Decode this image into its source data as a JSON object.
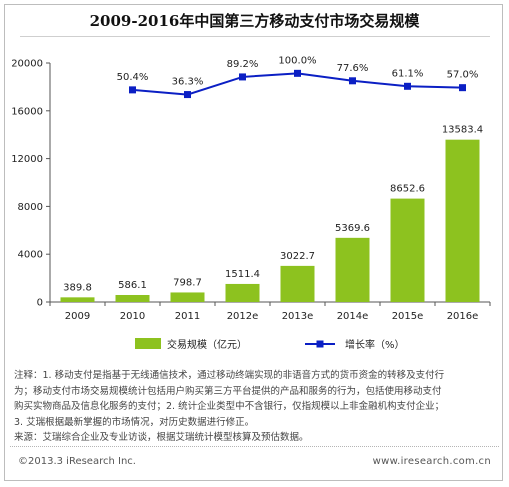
{
  "title": "2009-2016年中国第三方移动支付市场交易规模",
  "chart_data": {
    "type": "bar+line",
    "categories": [
      "2009",
      "2010",
      "2011",
      "2012e",
      "2013e",
      "2014e",
      "2015e",
      "2016e"
    ],
    "series": [
      {
        "name": "交易规模（亿元）",
        "type": "bar",
        "color": "#8dc21f",
        "values": [
          389.8,
          586.1,
          798.7,
          1511.4,
          3022.7,
          5369.6,
          8652.6,
          13583.4
        ],
        "labels": [
          "389.8",
          "586.1",
          "798.7",
          "1511.4",
          "3022.7",
          "5369.6",
          "8652.6",
          "13583.4"
        ]
      },
      {
        "name": "增长率（%）",
        "type": "line",
        "color": "#0b1fc4",
        "values": [
          null,
          50.4,
          36.3,
          89.2,
          100.0,
          77.6,
          61.1,
          57.0
        ],
        "labels": [
          "",
          "50.4%",
          "36.3%",
          "89.2%",
          "100.0%",
          "77.6%",
          "61.1%",
          "57.0%"
        ]
      }
    ],
    "y_axis": {
      "ylim": [
        0,
        20000
      ],
      "ticks": [
        "0",
        "4000",
        "8000",
        "12000",
        "16000",
        "20000"
      ]
    },
    "grid": false,
    "legend_position": "bottom"
  },
  "notes": [
    "注释：1. 移动支付是指基于无线通信技术，通过移动终端实现的非语音方式的货币资金的转移及支付行",
    "为；移动支付市场交易规模统计包括用户购买第三方平台提供的产品和服务的行为，包括使用移动支付",
    "购买实物商品及信息化服务的支付；2. 统计企业类型中不含银行，仅指规模以上非金融机构支付企业；",
    "3. 艾瑞根据最新掌握的市场情况，对历史数据进行修正。",
    "来源：艾瑞综合企业及专业访谈，根据艾瑞统计模型核算及预估数据。"
  ],
  "footer": {
    "copyright": "©2013.3 iResearch Inc.",
    "website": "www.iresearch.com.cn"
  }
}
